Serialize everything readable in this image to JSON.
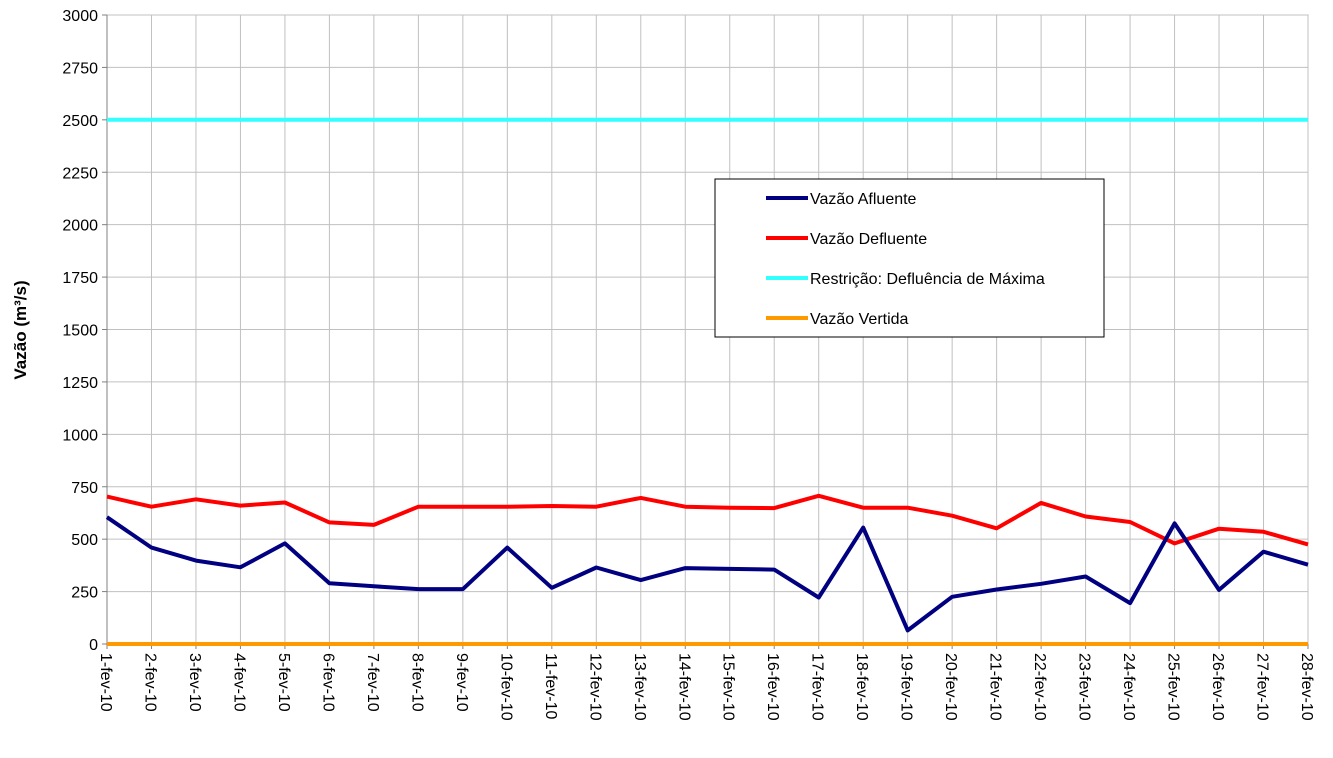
{
  "chart_data": {
    "type": "line",
    "title": "",
    "xlabel": "",
    "ylabel": "Vazão (m³/s)",
    "ylim": [
      0,
      3000
    ],
    "yticks": [
      0,
      250,
      500,
      750,
      1000,
      1250,
      1500,
      1750,
      2000,
      2250,
      2500,
      2750,
      3000
    ],
    "grid": true,
    "legend_position": "center-right",
    "categories": [
      "1-fev-10",
      "2-fev-10",
      "3-fev-10",
      "4-fev-10",
      "5-fev-10",
      "6-fev-10",
      "7-fev-10",
      "8-fev-10",
      "9-fev-10",
      "10-fev-10",
      "11-fev-10",
      "12-fev-10",
      "13-fev-10",
      "14-fev-10",
      "15-fev-10",
      "16-fev-10",
      "17-fev-10",
      "18-fev-10",
      "19-fev-10",
      "20-fev-10",
      "21-fev-10",
      "22-fev-10",
      "23-fev-10",
      "24-fev-10",
      "25-fev-10",
      "26-fev-10",
      "27-fev-10",
      "28-fev-10"
    ],
    "series": [
      {
        "name": "Vazão Afluente",
        "color": "#000080",
        "values": [
          605,
          460,
          398,
          366,
          480,
          290,
          275,
          262,
          262,
          460,
          268,
          365,
          305,
          362,
          358,
          355,
          222,
          555,
          65,
          225,
          260,
          287,
          322,
          195,
          575,
          258,
          440,
          378
        ]
      },
      {
        "name": "Vazão Defluente",
        "color": "#ff0000",
        "values": [
          703,
          655,
          690,
          660,
          675,
          580,
          568,
          655,
          655,
          655,
          658,
          655,
          697,
          655,
          650,
          648,
          707,
          650,
          650,
          612,
          552,
          673,
          608,
          582,
          480,
          550,
          535,
          475
        ]
      },
      {
        "name": "Restrição: Defluência de Máxima",
        "color": "#33ffff",
        "values": [
          2500,
          2500,
          2500,
          2500,
          2500,
          2500,
          2500,
          2500,
          2500,
          2500,
          2500,
          2500,
          2500,
          2500,
          2500,
          2500,
          2500,
          2500,
          2500,
          2500,
          2500,
          2500,
          2500,
          2500,
          2500,
          2500,
          2500,
          2500
        ]
      },
      {
        "name": "Vazão Vertida",
        "color": "#ff9900",
        "values": [
          0,
          0,
          0,
          0,
          0,
          0,
          0,
          0,
          0,
          0,
          0,
          0,
          0,
          0,
          0,
          0,
          0,
          0,
          0,
          0,
          0,
          0,
          0,
          0,
          0,
          0,
          0,
          0
        ]
      }
    ]
  }
}
